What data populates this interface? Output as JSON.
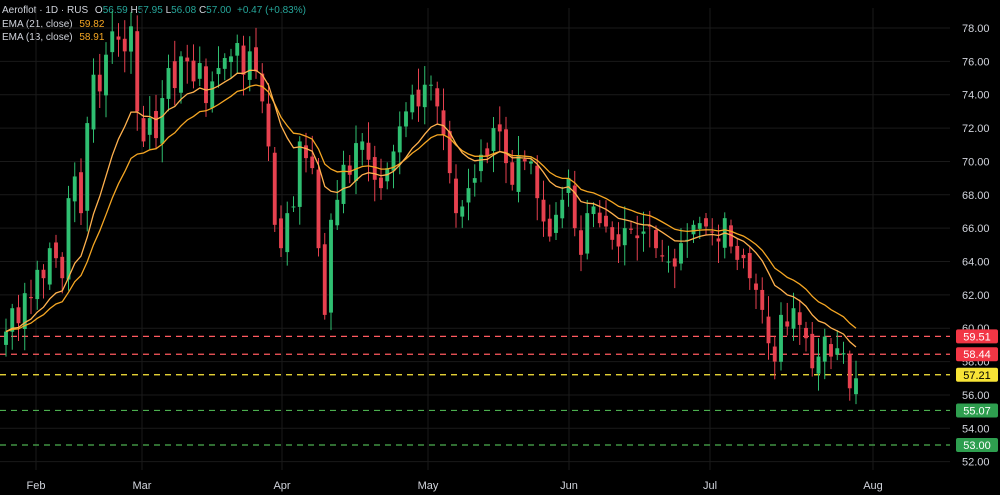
{
  "header": {
    "symbol": "Aeroflot · 1D · RUS",
    "o_label": "O",
    "o_val": "56.59",
    "h_label": "H",
    "h_val": "57.95",
    "l_label": "L",
    "l_val": "56.08",
    "c_label": "C",
    "c_val": "57.00",
    "change": "+0.47 (+0.83%)",
    "ema21_label": "EMA (21, close)",
    "ema21_val": "59.82",
    "ema13_label": "EMA (13, close)",
    "ema13_val": "58.91"
  },
  "colors": {
    "background": "#000000",
    "up": "#2fbf71",
    "down": "#e6414f",
    "ema21": "#f5a623",
    "ema13": "#ffb14e",
    "red_line": "#ff5a5f",
    "yellow_line": "#ffeb3b",
    "green_line": "#4caf50"
  },
  "chart_data": {
    "type": "candlestick",
    "ylim": [
      51.5,
      79.2
    ],
    "y_ticks": [
      "52.00",
      "54.00",
      "56.00",
      "58.00",
      "60.00",
      "62.00",
      "64.00",
      "66.00",
      "68.00",
      "70.00",
      "72.00",
      "74.00",
      "76.00",
      "78.00"
    ],
    "x_months": [
      "Feb",
      "Mar",
      "Apr",
      "May",
      "Jun",
      "Jul",
      "Aug"
    ],
    "levels": [
      {
        "value": 59.51,
        "label": "59.51",
        "kind": "red"
      },
      {
        "value": 58.44,
        "label": "58.44",
        "kind": "red"
      },
      {
        "value": 57.21,
        "label": "57.21",
        "kind": "yellow"
      },
      {
        "value": 55.07,
        "label": "55.07",
        "kind": "green"
      },
      {
        "value": 53.0,
        "label": "53.00",
        "kind": "green"
      }
    ],
    "closes": [
      59.8,
      61.2,
      60.3,
      62.1,
      61.8,
      63.5,
      63.0,
      64.8,
      64.2,
      63.0,
      67.8,
      69.1,
      66.9,
      72.3,
      75.2,
      74.2,
      76.4,
      77.8,
      77.3,
      76.6,
      78.1,
      73.0,
      71.2,
      72.6,
      71.4,
      73.8,
      75.6,
      74.4,
      76.3,
      76.0,
      74.8,
      75.9,
      73.5,
      74.8,
      75.6,
      76.2,
      76.3,
      77.1,
      75.2,
      76.6,
      75.4,
      73.6,
      70.9,
      66.2,
      64.8,
      66.9,
      67.3,
      71.2,
      70.2,
      69.6,
      64.8,
      60.8,
      66.5,
      67.7,
      69.8,
      69.2,
      71.1,
      71.2,
      70.1,
      68.9,
      68.4,
      69.6,
      70.6,
      72.1,
      73.0,
      74.0,
      73.3,
      74.6,
      74.6,
      73.3,
      71.6,
      69.3,
      66.9,
      67.3,
      68.4,
      69.0,
      70.4,
      70.3,
      72.0,
      71.8,
      69.9,
      68.6,
      70.3,
      70.0,
      70.0,
      67.8,
      66.4,
      65.5,
      66.8,
      67.7,
      69.0,
      66.0,
      64.4,
      66.9,
      67.3,
      66.3,
      66.1,
      65.3,
      64.9,
      66.0,
      65.9,
      65.4,
      65.8,
      66.1,
      64.8,
      64.3,
      64.0,
      63.7,
      65.1,
      65.3,
      66.2,
      66.3,
      66.1,
      65.8,
      65.2,
      66.6,
      64.9,
      64.1,
      64.2,
      63.0,
      62.3,
      61.1,
      59.1,
      58.0,
      60.8,
      60.1,
      61.2,
      60.2,
      59.4,
      57.6,
      58.3,
      59.5,
      58.3,
      58.8,
      58.5,
      56.4,
      57.0
    ]
  }
}
